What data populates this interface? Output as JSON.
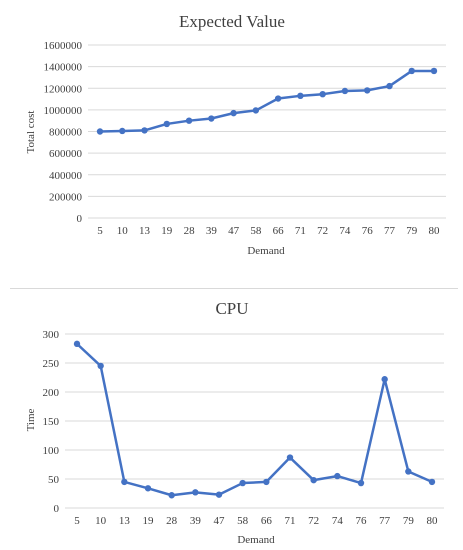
{
  "chart_data": [
    {
      "type": "line",
      "title": "Expected Value",
      "xlabel": "Demand",
      "ylabel": "Total cost",
      "categories": [
        "5",
        "10",
        "13",
        "19",
        "28",
        "39",
        "47",
        "58",
        "66",
        "71",
        "72",
        "74",
        "76",
        "77",
        "79",
        "80"
      ],
      "series": [
        {
          "values": [
            800000,
            805000,
            810000,
            870000,
            900000,
            920000,
            970000,
            995000,
            1105000,
            1130000,
            1145000,
            1175000,
            1180000,
            1220000,
            1360000,
            1360000
          ],
          "color": "#4472C4"
        }
      ],
      "ylim": [
        0,
        1600000
      ],
      "yticks": [
        0,
        200000,
        400000,
        600000,
        800000,
        1000000,
        1200000,
        1400000,
        1600000
      ],
      "grid": true
    },
    {
      "type": "line",
      "title": "CPU",
      "xlabel": "Demand",
      "ylabel": "Time",
      "categories": [
        "5",
        "10",
        "13",
        "19",
        "28",
        "39",
        "47",
        "58",
        "66",
        "71",
        "72",
        "74",
        "76",
        "77",
        "79",
        "80"
      ],
      "series": [
        {
          "values": [
            283,
            245,
            45,
            34,
            22,
            27,
            23,
            43,
            45,
            87,
            48,
            55,
            43,
            222,
            63,
            45
          ],
          "color": "#4472C4"
        }
      ],
      "ylim": [
        0,
        300
      ],
      "yticks": [
        0,
        50,
        100,
        150,
        200,
        250,
        300
      ],
      "grid": true
    }
  ]
}
